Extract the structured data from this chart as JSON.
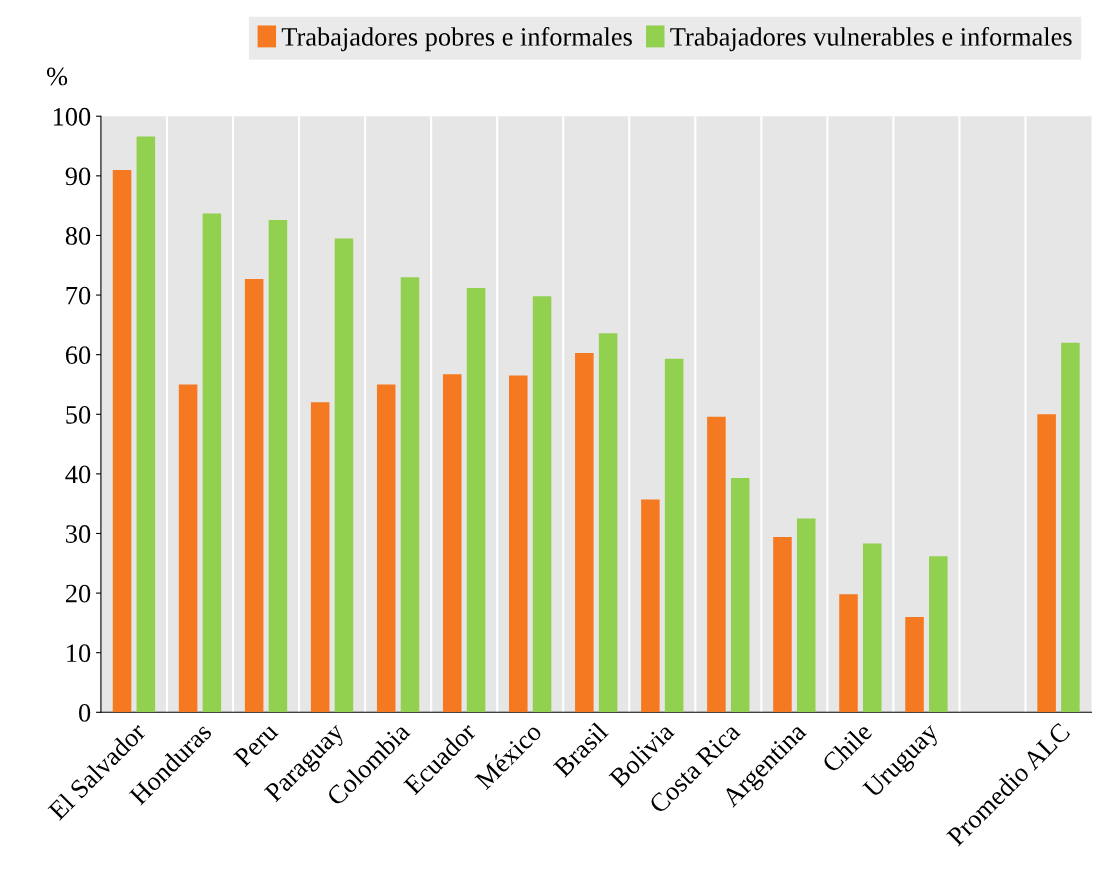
{
  "chart_data": {
    "type": "bar",
    "ylabel": "%",
    "categories": [
      "El Salvador",
      "Honduras",
      "Peru",
      "Paraguay",
      "Colombia",
      "Ecuador",
      "México",
      "Brasil",
      "Bolivia",
      "Costa Rica",
      "Argentina",
      "Chile",
      "Uruguay",
      null,
      "Promedio ALC"
    ],
    "series": [
      {
        "name": "Trabajadores pobres e informales",
        "color": "#f47920",
        "values": [
          91,
          55,
          72.7,
          52,
          55,
          56.7,
          56.5,
          60.3,
          35.7,
          49.6,
          29.4,
          19.8,
          16,
          null,
          50
        ]
      },
      {
        "name": "Trabajadores vulnerables e informales",
        "color": "#92d050",
        "values": [
          96.6,
          83.7,
          82.6,
          79.5,
          73,
          71.2,
          69.8,
          63.6,
          59.3,
          39.3,
          32.5,
          28.3,
          26.2,
          null,
          62
        ]
      }
    ],
    "ylim": [
      0,
      100
    ],
    "yticks": [
      0,
      10,
      20,
      30,
      40,
      50,
      60,
      70,
      80,
      90,
      100
    ],
    "grid": "x",
    "legend": "top"
  }
}
